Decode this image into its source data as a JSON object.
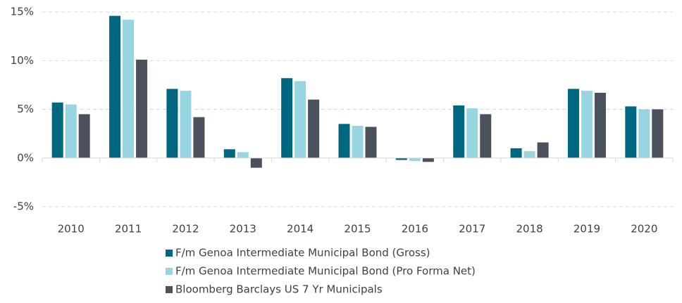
{
  "chart_data": {
    "type": "bar",
    "categories": [
      "2010",
      "2011",
      "2012",
      "2013",
      "2014",
      "2015",
      "2016",
      "2017",
      "2018",
      "2019",
      "2020"
    ],
    "series": [
      {
        "name": "F/m Genoa Intermediate Municipal Bond (Gross)",
        "color": "#006780",
        "values": [
          5.7,
          14.6,
          7.1,
          0.9,
          8.2,
          3.5,
          -0.2,
          5.4,
          1.0,
          7.1,
          5.3
        ]
      },
      {
        "name": "F/m Genoa Intermediate Municipal Bond (Pro Forma Net)",
        "color": "#97d5e1",
        "values": [
          5.5,
          14.2,
          6.9,
          0.6,
          7.9,
          3.3,
          -0.3,
          5.1,
          0.7,
          6.9,
          5.0
        ]
      },
      {
        "name": "Bloomberg Barclays US 7 Yr Municipals",
        "color": "#4a505c",
        "values": [
          4.5,
          10.1,
          4.2,
          -1.0,
          6.0,
          3.2,
          -0.4,
          4.5,
          1.6,
          6.7,
          5.0
        ]
      }
    ],
    "ylim": [
      -5,
      15
    ],
    "yticks": [
      {
        "value": -5,
        "label": "-5%"
      },
      {
        "value": 0,
        "label": "0%"
      },
      {
        "value": 5,
        "label": "5%"
      },
      {
        "value": 10,
        "label": "10%"
      },
      {
        "value": 15,
        "label": "15%"
      }
    ],
    "grid": true,
    "legend": "bottom"
  }
}
